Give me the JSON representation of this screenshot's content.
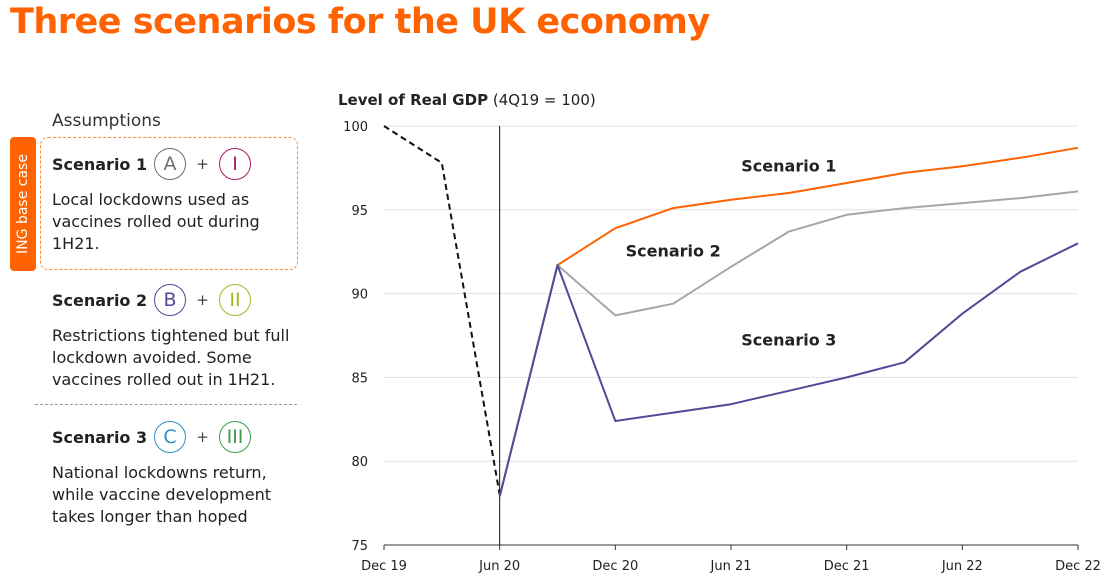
{
  "page_title": "Three scenarios for the UK economy",
  "assumptions_heading": "Assumptions",
  "base_case_tag": "ING base case",
  "plus_sign": "+",
  "scenarios": [
    {
      "name": "Scenario 1",
      "badge_a": "A",
      "badge_b": "I",
      "color_a": "#6e6e6e",
      "color_b": "#b0176e",
      "desc": [
        "Local lockdowns used as",
        "vaccines rolled out during",
        "1H21."
      ]
    },
    {
      "name": "Scenario 2",
      "badge_a": "B",
      "badge_b": "II",
      "color_a": "#524a96",
      "color_b": "#a3b820",
      "desc": [
        "Restrictions tightened but full",
        "lockdown avoided. Some",
        "vaccines rolled out in 1H21."
      ]
    },
    {
      "name": "Scenario 3",
      "badge_a": "C",
      "badge_b": "III",
      "color_a": "#2f8fc4",
      "color_b": "#3c9a4a",
      "desc": [
        "National lockdowns return,",
        "while vaccine development",
        "takes longer than hoped"
      ]
    }
  ],
  "chart_data": {
    "type": "line",
    "title": "Level of Real GDP",
    "subtitle": "(4Q19 = 100)",
    "xlabel": "",
    "ylabel": "",
    "ylim": [
      75,
      100
    ],
    "yticks": [
      75,
      80,
      85,
      90,
      95,
      100
    ],
    "grid": true,
    "x": [
      "Dec 19",
      "Mar 20",
      "Jun 20",
      "Sep 20",
      "Dec 20",
      "Mar 21",
      "Jun 21",
      "Sep 21",
      "Dec 21",
      "Mar 22",
      "Jun 22",
      "Sep 22",
      "Dec 22"
    ],
    "xtick_labels": [
      "Dec 19",
      "Jun 20",
      "Dec 20",
      "Jun 21",
      "Dec 21",
      "Jun 22",
      "Dec 22"
    ],
    "marker_line_at": "Jun 20",
    "series": [
      {
        "name": "",
        "style": "dashed",
        "color": "#111111",
        "values": [
          100,
          97.8,
          78,
          null,
          null,
          null,
          null,
          null,
          null,
          null,
          null,
          null,
          null
        ]
      },
      {
        "name": "Scenario 1",
        "color": "#ff6200",
        "values": [
          null,
          null,
          77.9,
          91.7,
          93.9,
          95.1,
          95.6,
          96.0,
          96.6,
          97.2,
          97.6,
          98.1,
          98.7
        ],
        "label_at": [
          "Sep 21",
          97.3
        ]
      },
      {
        "name": "Scenario 2",
        "color": "#a6a6a6",
        "values": [
          null,
          null,
          77.9,
          91.7,
          88.7,
          89.4,
          91.6,
          93.7,
          94.7,
          95.1,
          95.4,
          95.7,
          96.1
        ],
        "label_at": [
          "Mar 21",
          92.2
        ]
      },
      {
        "name": "Scenario 3",
        "color": "#524a96",
        "values": [
          null,
          null,
          77.9,
          91.7,
          82.4,
          82.9,
          83.4,
          84.2,
          85.0,
          85.9,
          88.8,
          91.3,
          93.0
        ],
        "label_at": [
          "Sep 21",
          86.9
        ]
      }
    ]
  }
}
